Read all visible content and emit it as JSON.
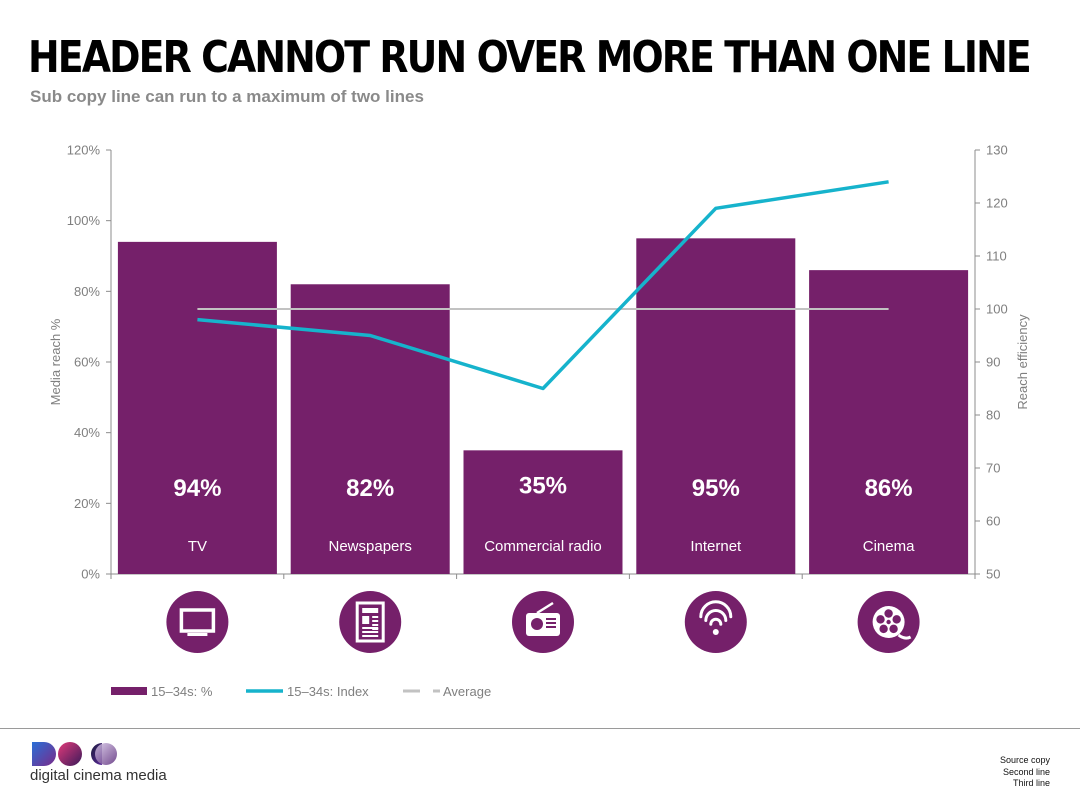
{
  "header": {
    "title": "HEADER CANNOT RUN OVER MORE THAN ONE LINE",
    "subtitle": "Sub copy line can run to a maximum of two lines"
  },
  "chart_data": {
    "type": "bar",
    "categories": [
      "TV",
      "Newspapers",
      "Commercial radio",
      "Internet",
      "Cinema"
    ],
    "icons": [
      "tv-icon",
      "newspaper-icon",
      "radio-icon",
      "wifi-icon",
      "film-reel-icon"
    ],
    "series": [
      {
        "name": "15–34s: %",
        "type": "bar",
        "axis": "left",
        "values": [
          94,
          82,
          35,
          95,
          86
        ],
        "labels": [
          "94%",
          "82%",
          "35%",
          "95%",
          "86%"
        ]
      },
      {
        "name": "15–34s: Index",
        "type": "line",
        "axis": "right",
        "values": [
          98,
          95,
          85,
          119,
          124
        ]
      },
      {
        "name": "Average",
        "type": "line",
        "axis": "right",
        "values": [
          100,
          100,
          100,
          100,
          100
        ]
      }
    ],
    "ylabel": "Media reach %",
    "y2label": "Reach efficiency",
    "ylim": [
      0,
      120
    ],
    "y2lim": [
      50,
      130
    ],
    "yticks": [
      "0%",
      "20%",
      "40%",
      "60%",
      "80%",
      "100%",
      "120%"
    ],
    "y2ticks": [
      "50",
      "60",
      "70",
      "80",
      "90",
      "100",
      "110",
      "120",
      "130"
    ],
    "legend_position": "bottom-left",
    "colors": {
      "bar": "#75206a",
      "index_line": "#16b3cc",
      "average_line": "#c2c2c2",
      "axis": "#8c8c8c",
      "tick_text": "#7f7f7f"
    }
  },
  "footer": {
    "brand": "digital cinema media",
    "source_lines": [
      "Source copy",
      "Second line",
      "Third line"
    ]
  }
}
